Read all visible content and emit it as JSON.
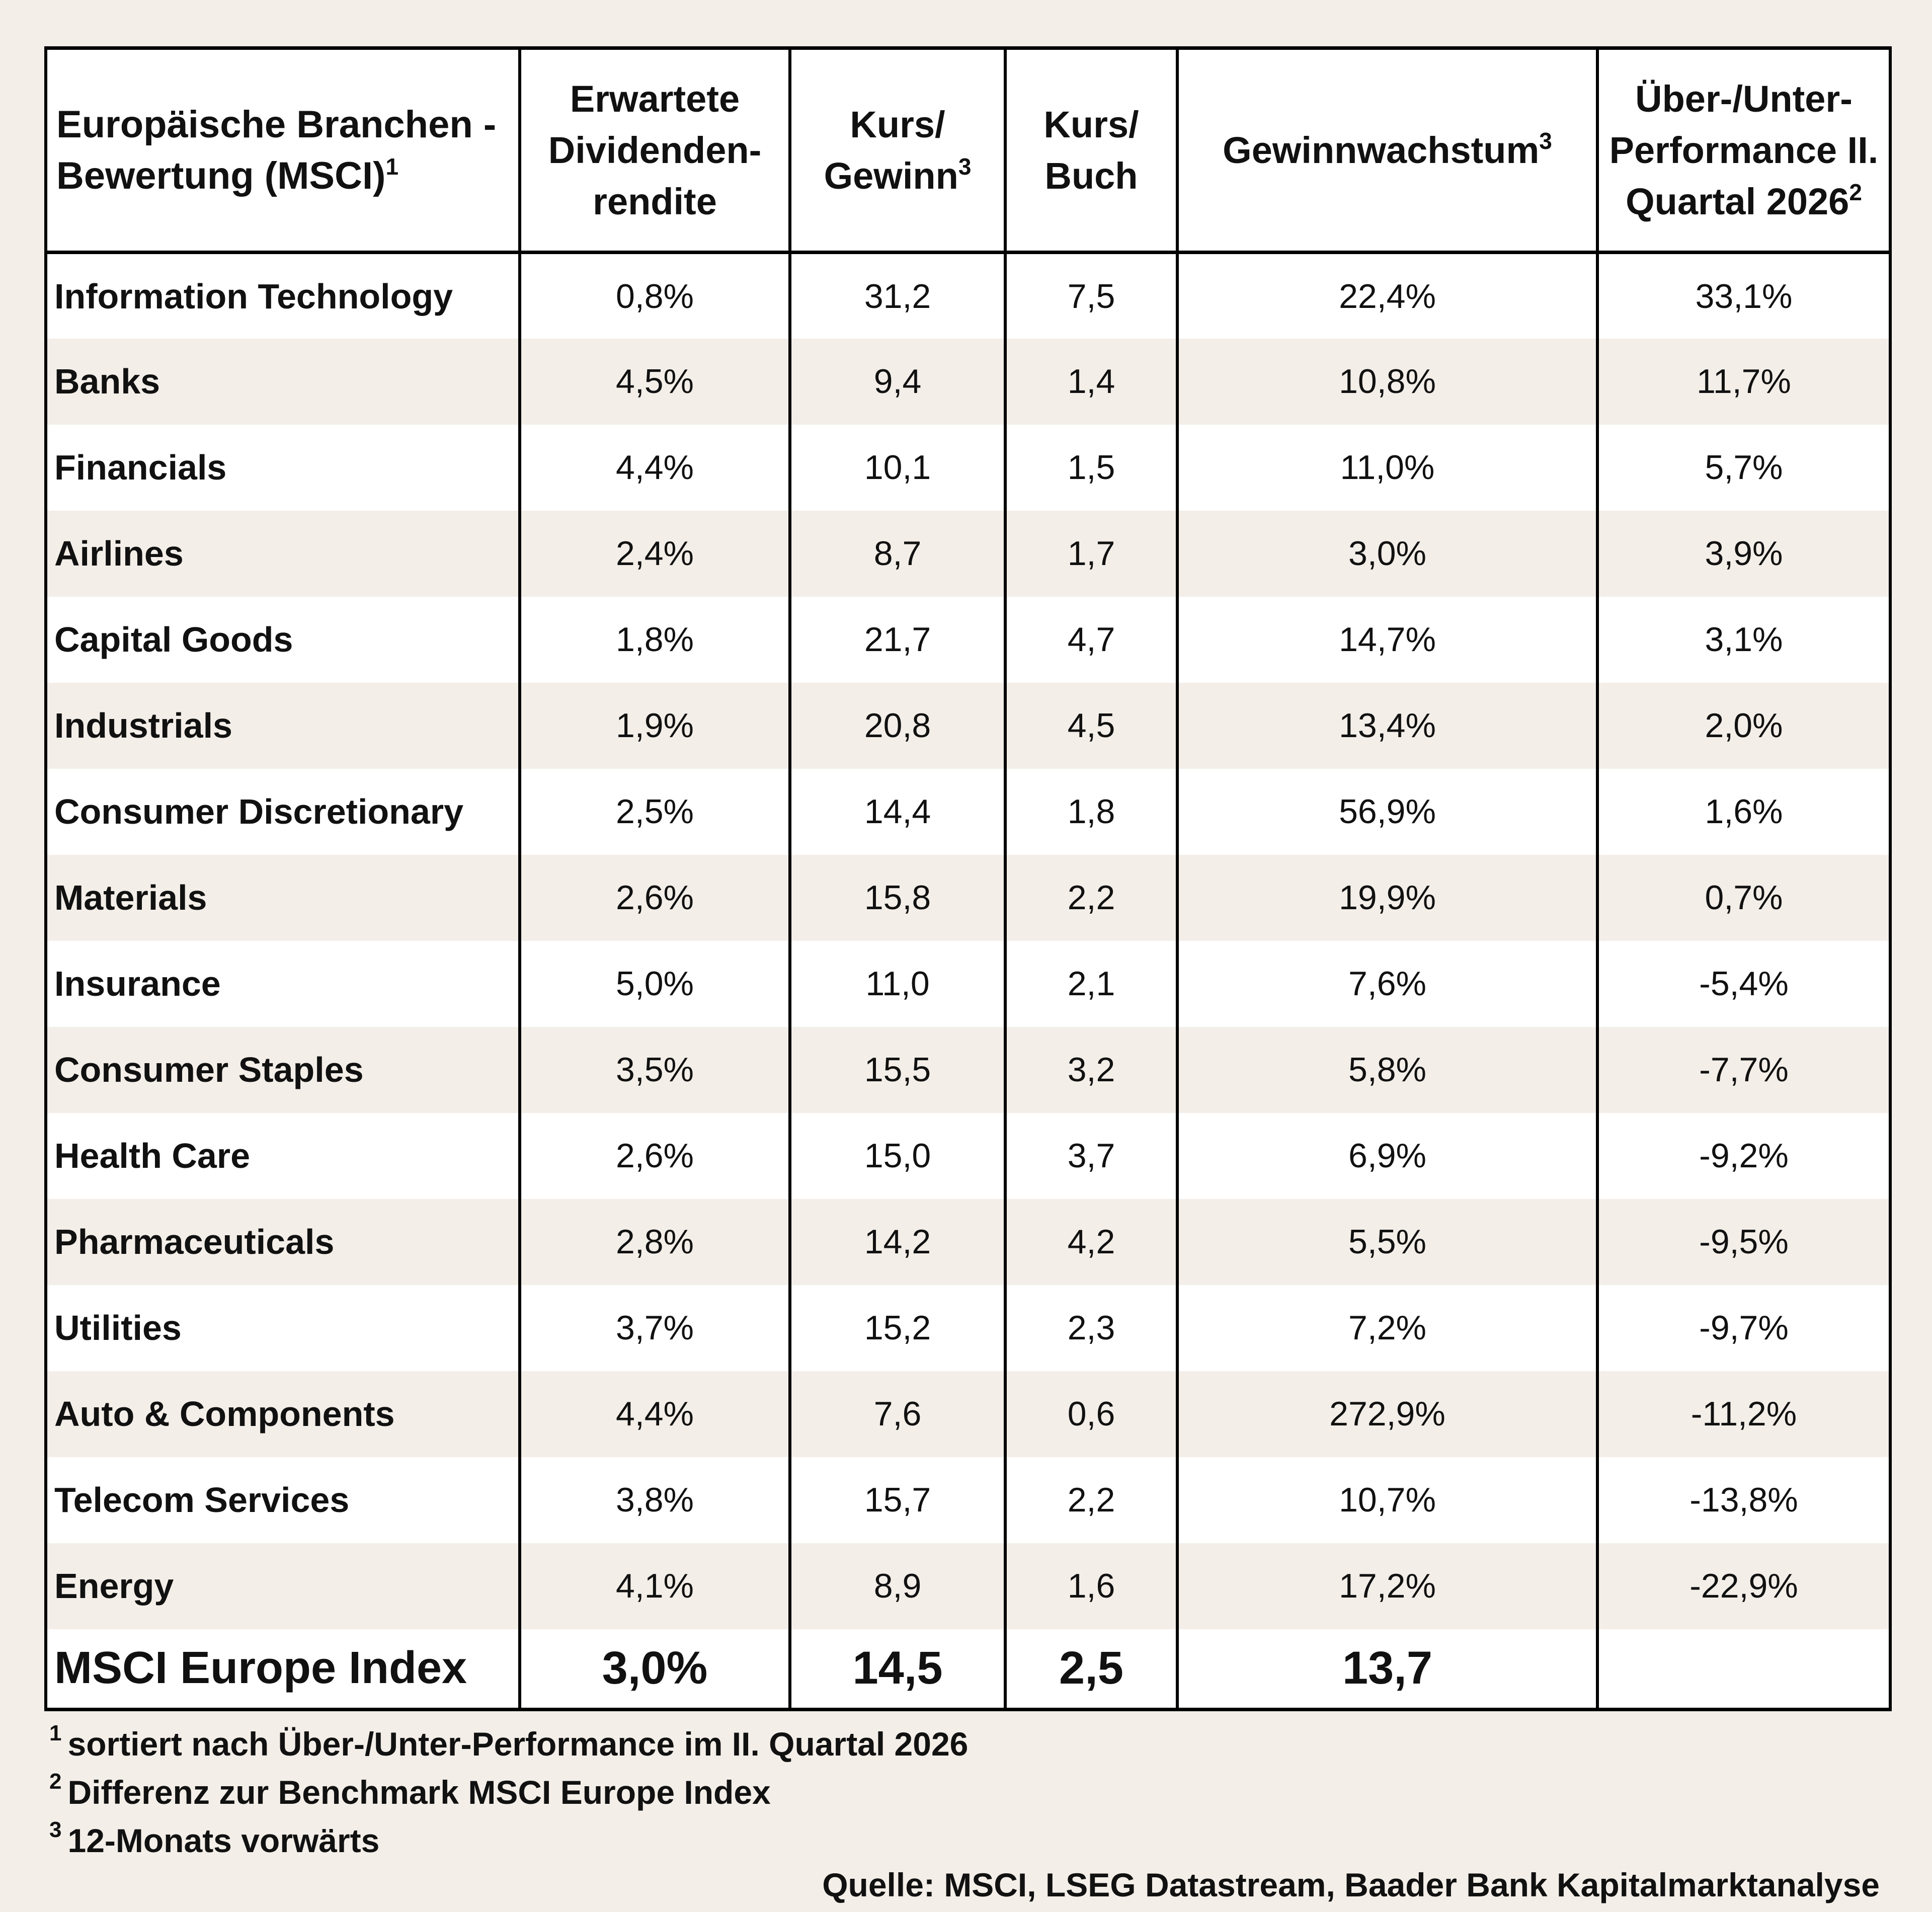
{
  "table": {
    "headers": [
      {
        "text": "Europäische Branchen - Bewertung (MSCI)",
        "sup": "1"
      },
      {
        "text": "Erwartete Dividenden-rendite",
        "sup": ""
      },
      {
        "text": "Kurs/ Gewinn",
        "sup": "3"
      },
      {
        "text": "Kurs/ Buch",
        "sup": ""
      },
      {
        "text": "Gewinnwachstum",
        "sup": "3"
      },
      {
        "text": "Über-/Unter-Performance II. Quartal 2026",
        "sup": "2"
      }
    ],
    "rows": [
      [
        "Information Technology",
        "0,8%",
        "31,2",
        "7,5",
        "22,4%",
        "33,1%"
      ],
      [
        "Banks",
        "4,5%",
        "9,4",
        "1,4",
        "10,8%",
        "11,7%"
      ],
      [
        "Financials",
        "4,4%",
        "10,1",
        "1,5",
        "11,0%",
        "5,7%"
      ],
      [
        "Airlines",
        "2,4%",
        "8,7",
        "1,7",
        "3,0%",
        "3,9%"
      ],
      [
        "Capital Goods",
        "1,8%",
        "21,7",
        "4,7",
        "14,7%",
        "3,1%"
      ],
      [
        "Industrials",
        "1,9%",
        "20,8",
        "4,5",
        "13,4%",
        "2,0%"
      ],
      [
        "Consumer Discretionary",
        "2,5%",
        "14,4",
        "1,8",
        "56,9%",
        "1,6%"
      ],
      [
        "Materials",
        "2,6%",
        "15,8",
        "2,2",
        "19,9%",
        "0,7%"
      ],
      [
        "Insurance",
        "5,0%",
        "11,0",
        "2,1",
        "7,6%",
        "-5,4%"
      ],
      [
        "Consumer Staples",
        "3,5%",
        "15,5",
        "3,2",
        "5,8%",
        "-7,7%"
      ],
      [
        "Health Care",
        "2,6%",
        "15,0",
        "3,7",
        "6,9%",
        "-9,2%"
      ],
      [
        "Pharmaceuticals",
        "2,8%",
        "14,2",
        "4,2",
        "5,5%",
        "-9,5%"
      ],
      [
        "Utilities",
        "3,7%",
        "15,2",
        "2,3",
        "7,2%",
        "-9,7%"
      ],
      [
        "Auto & Components",
        "4,4%",
        "7,6",
        "0,6",
        "272,9%",
        "-11,2%"
      ],
      [
        "Telecom Services",
        "3,8%",
        "15,7",
        "2,2",
        "10,7%",
        "-13,8%"
      ],
      [
        "Energy",
        "4,1%",
        "8,9",
        "1,6",
        "17,2%",
        "-22,9%"
      ]
    ],
    "total": [
      "MSCI Europe Index",
      "3,0%",
      "14,5",
      "2,5",
      "13,7",
      ""
    ]
  },
  "footnotes": [
    {
      "num": "1",
      "text": "sortiert nach Über-/Unter-Performance im II. Quartal 2026"
    },
    {
      "num": "2",
      "text": "Differenz zur Benchmark MSCI Europe Index"
    },
    {
      "num": "3",
      "text": "12-Monats vorwärts"
    }
  ],
  "source": "Quelle: MSCI, LSEG Datastream, Baader Bank Kapitalmarktanalyse",
  "colors": {
    "background": "#f3eee8",
    "row_white": "#ffffff",
    "row_shaded": "#f3eee8",
    "border": "#000000"
  }
}
